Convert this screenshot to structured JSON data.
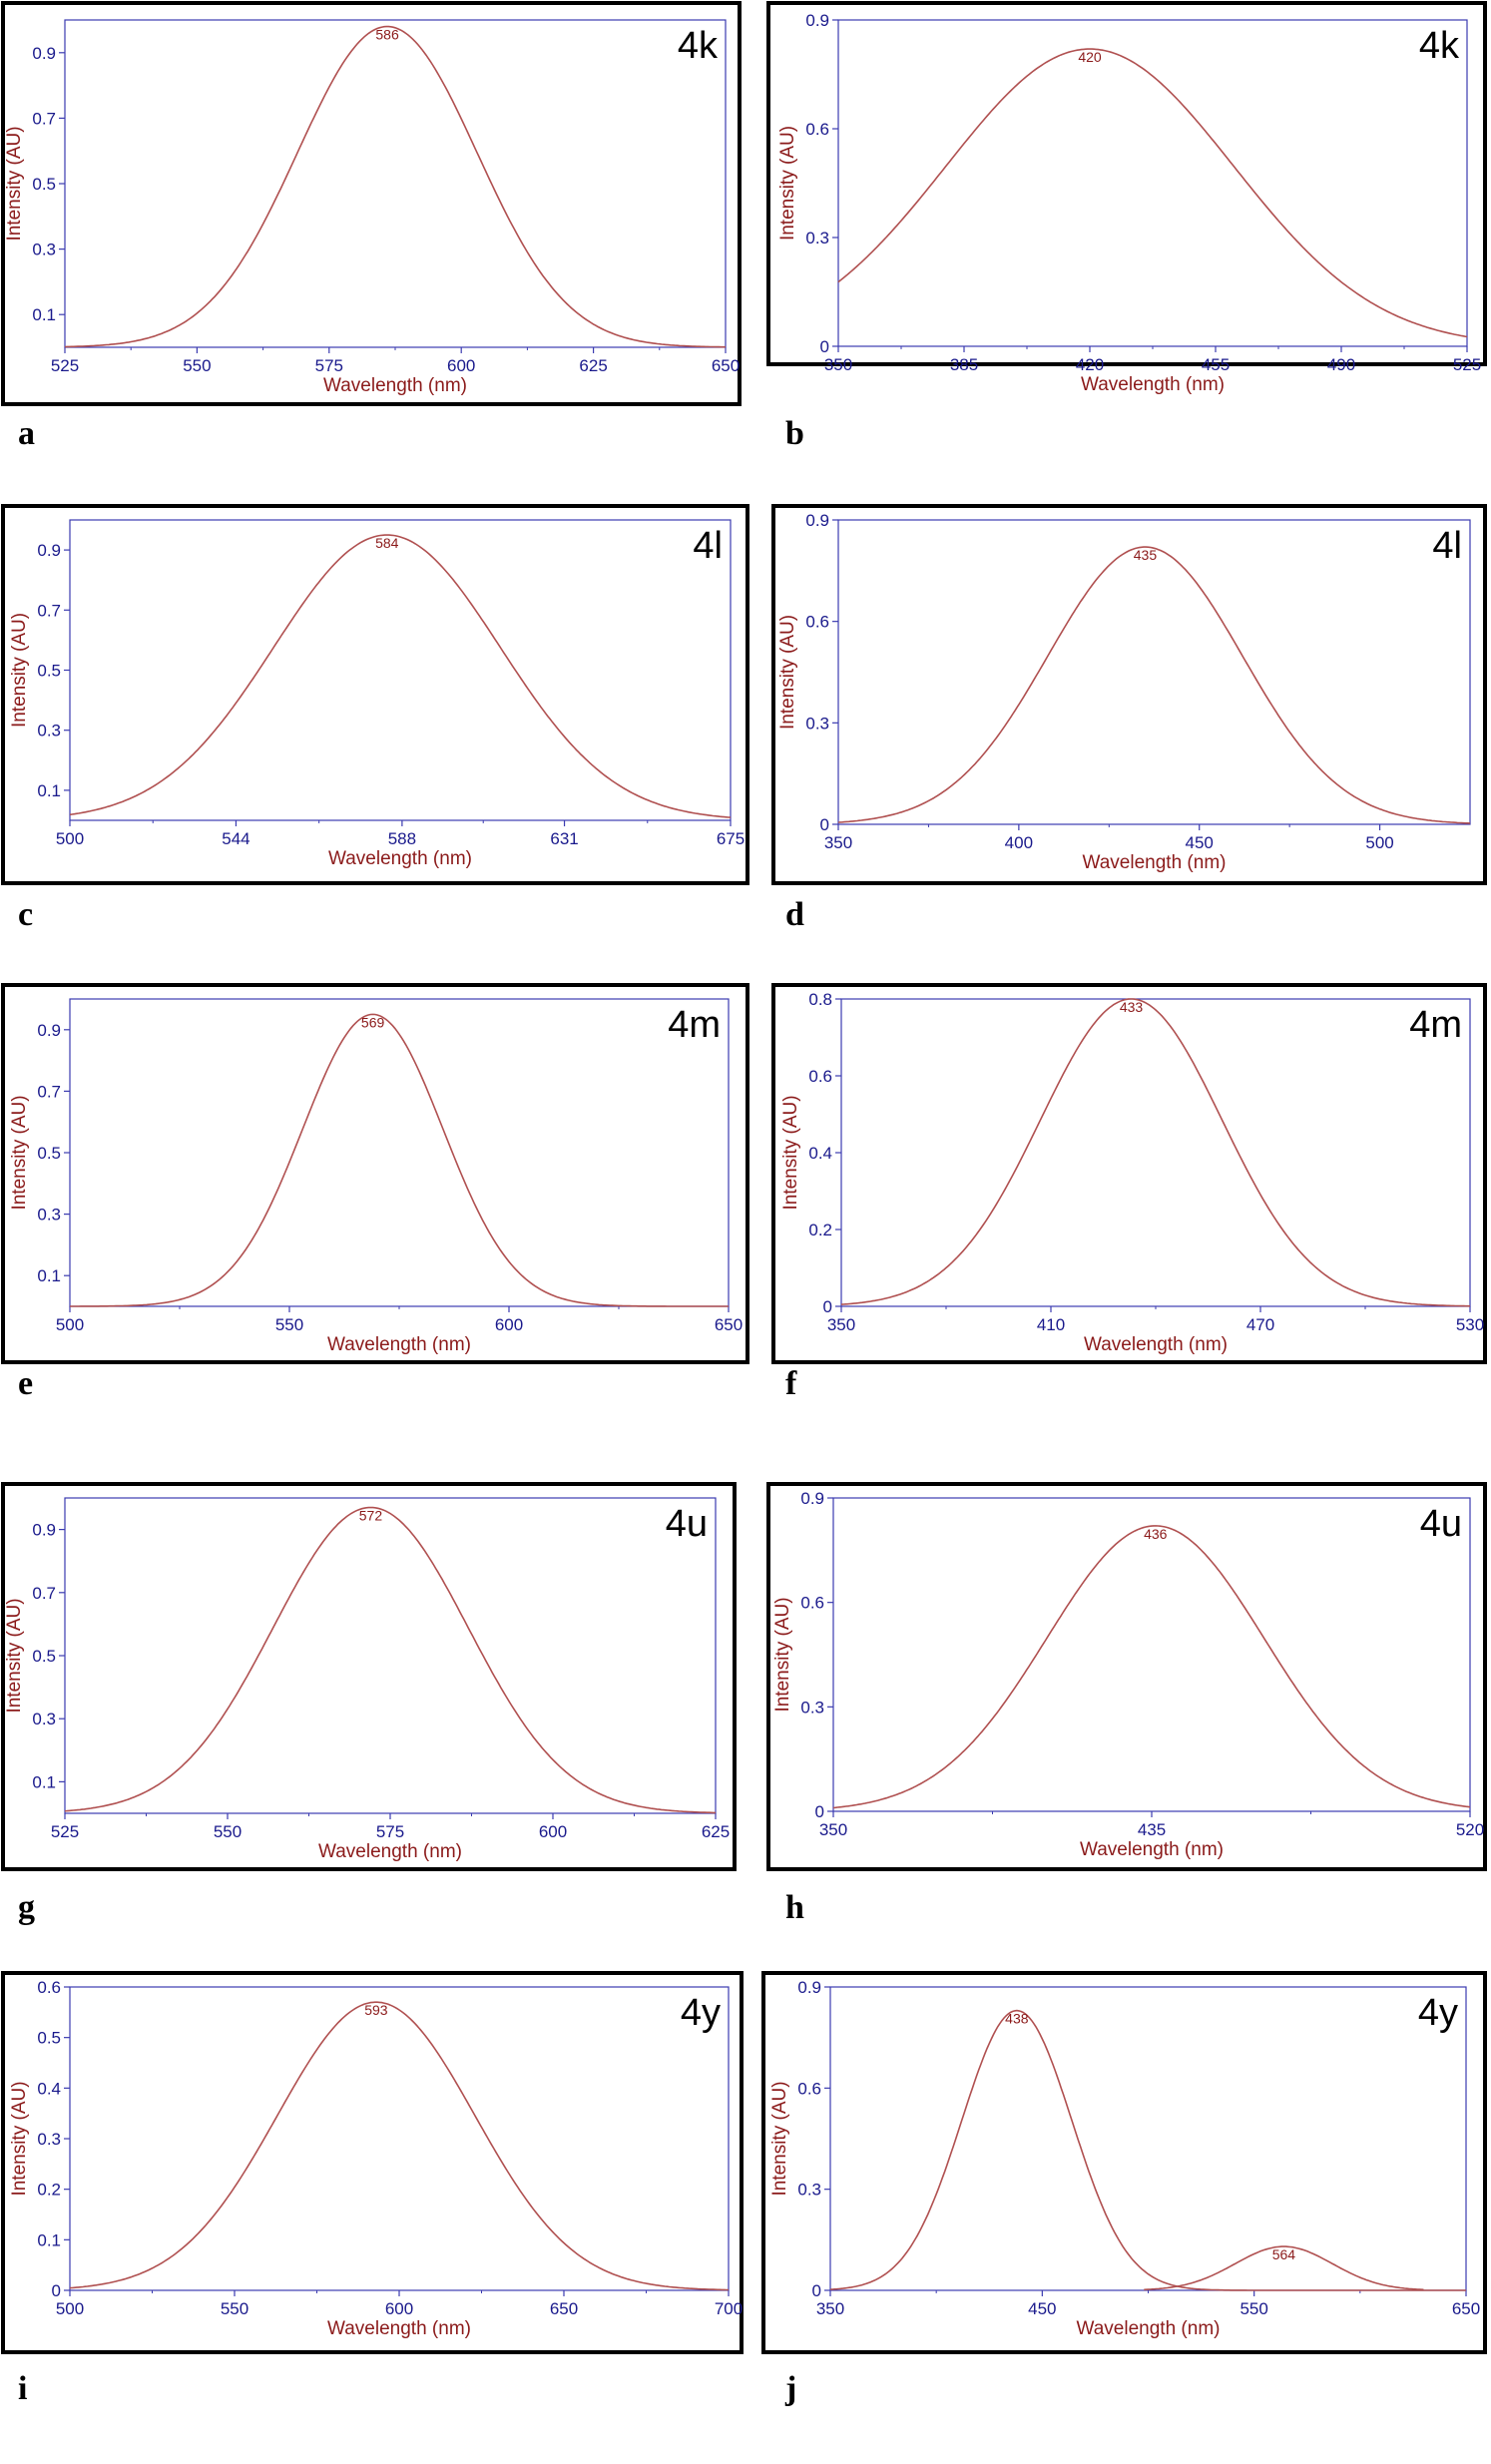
{
  "chart_data": [
    {
      "type": "line",
      "panel": "a",
      "compound": "4k",
      "xlabel": "Wavelength (nm)",
      "ylabel": "Intensity (AU)",
      "xlim": [
        525,
        650
      ],
      "ylim": [
        0,
        1.0
      ],
      "xticks": [
        525,
        550,
        575,
        600,
        625,
        650
      ],
      "yticks": [
        0.1,
        0.3,
        0.5,
        0.7,
        0.9
      ],
      "series": [
        {
          "peak_x": 586,
          "peak_y": 0.98,
          "sigma": 17,
          "peak_label": "586"
        }
      ]
    },
    {
      "type": "line",
      "panel": "b",
      "compound": "4k",
      "xlabel": "Wavelength (nm)",
      "ylabel": "Intensity (AU)",
      "xlim": [
        350,
        525
      ],
      "ylim": [
        0,
        0.9
      ],
      "xticks": [
        350,
        385,
        420,
        455,
        490,
        525
      ],
      "yticks": [
        0,
        0.3,
        0.6,
        0.9
      ],
      "series": [
        {
          "peak_x": 420,
          "peak_y": 0.82,
          "sigma": 40,
          "peak_label": "420"
        }
      ]
    },
    {
      "type": "line",
      "panel": "c",
      "compound": "4l",
      "xlabel": "Wavelength (nm)",
      "ylabel": "Intensity (AU)",
      "xlim": [
        500,
        675
      ],
      "ylim": [
        0,
        1.0
      ],
      "xticks": [
        500,
        544,
        588,
        631,
        675
      ],
      "yticks": [
        0.1,
        0.3,
        0.5,
        0.7,
        0.9
      ],
      "series": [
        {
          "peak_x": 584,
          "peak_y": 0.95,
          "sigma": 30,
          "peak_label": "584"
        }
      ]
    },
    {
      "type": "line",
      "panel": "d",
      "compound": "4l",
      "xlabel": "Wavelength (nm)",
      "ylabel": "Intensity (AU)",
      "xlim": [
        350,
        525
      ],
      "ylim": [
        0,
        0.9
      ],
      "xticks": [
        350,
        400,
        450,
        500
      ],
      "yticks": [
        0,
        0.3,
        0.6,
        0.9
      ],
      "series": [
        {
          "peak_x": 435,
          "peak_y": 0.82,
          "sigma": 27,
          "peak_label": "435"
        }
      ]
    },
    {
      "type": "line",
      "panel": "e",
      "compound": "4m",
      "xlabel": "Wavelength (nm)",
      "ylabel": "Intensity (AU)",
      "xlim": [
        500,
        650
      ],
      "ylim": [
        0,
        1.0
      ],
      "xticks": [
        500,
        550,
        600,
        650
      ],
      "yticks": [
        0.1,
        0.3,
        0.5,
        0.7,
        0.9
      ],
      "series": [
        {
          "peak_x": 569,
          "peak_y": 0.95,
          "sigma": 16,
          "peak_label": "569"
        }
      ]
    },
    {
      "type": "line",
      "panel": "f",
      "compound": "4m",
      "xlabel": "Wavelength (nm)",
      "ylabel": "Intensity (AU)",
      "xlim": [
        350,
        530
      ],
      "ylim": [
        0,
        0.8
      ],
      "xticks": [
        350,
        410,
        470,
        530
      ],
      "yticks": [
        0,
        0.2,
        0.4,
        0.6,
        0.8
      ],
      "series": [
        {
          "peak_x": 433,
          "peak_y": 0.8,
          "sigma": 26,
          "peak_label": "433"
        }
      ]
    },
    {
      "type": "line",
      "panel": "g",
      "compound": "4u",
      "xlabel": "Wavelength (nm)",
      "ylabel": "Intensity (AU)",
      "xlim": [
        525,
        625
      ],
      "ylim": [
        0,
        1.0
      ],
      "xticks": [
        525,
        550,
        575,
        600,
        625
      ],
      "yticks": [
        0.1,
        0.3,
        0.5,
        0.7,
        0.9
      ],
      "series": [
        {
          "peak_x": 572,
          "peak_y": 0.97,
          "sigma": 15,
          "peak_label": "572"
        }
      ]
    },
    {
      "type": "line",
      "panel": "h",
      "compound": "4u",
      "xlabel": "Wavelength (nm)",
      "ylabel": "Intensity (AU)",
      "xlim": [
        350,
        520
      ],
      "ylim": [
        0,
        0.9
      ],
      "xticks": [
        350,
        435,
        520
      ],
      "yticks": [
        0,
        0.3,
        0.6,
        0.9
      ],
      "series": [
        {
          "peak_x": 436,
          "peak_y": 0.82,
          "sigma": 29,
          "peak_label": "436"
        }
      ]
    },
    {
      "type": "line",
      "panel": "i",
      "compound": "4y",
      "xlabel": "Wavelength (nm)",
      "ylabel": "Intensity (AU)",
      "xlim": [
        500,
        700
      ],
      "ylim": [
        0,
        0.6
      ],
      "xticks": [
        500,
        550,
        600,
        650,
        700
      ],
      "yticks": [
        0,
        0.1,
        0.2,
        0.3,
        0.4,
        0.5,
        0.6
      ],
      "series": [
        {
          "peak_x": 593,
          "peak_y": 0.57,
          "sigma": 30,
          "peak_label": "593"
        }
      ]
    },
    {
      "type": "line",
      "panel": "j",
      "compound": "4y",
      "xlabel": "Wavelength (nm)",
      "ylabel": "Intensity (AU)",
      "xlim": [
        350,
        650
      ],
      "ylim": [
        0,
        0.9
      ],
      "xticks": [
        350,
        450,
        550,
        650
      ],
      "yticks": [
        0,
        0.3,
        0.6,
        0.9
      ],
      "series": [
        {
          "peak_x": 438,
          "peak_y": 0.83,
          "sigma": 26,
          "peak_label": "438"
        },
        {
          "peak_x": 564,
          "peak_y": 0.13,
          "sigma": 23,
          "peak_label": "564"
        }
      ]
    }
  ],
  "colors": {
    "curve": "#b05050",
    "axis": "#3b3bb0",
    "tick_text": "#1a1a8c",
    "title_text": "#8b1a1a",
    "frame": "#000000"
  }
}
